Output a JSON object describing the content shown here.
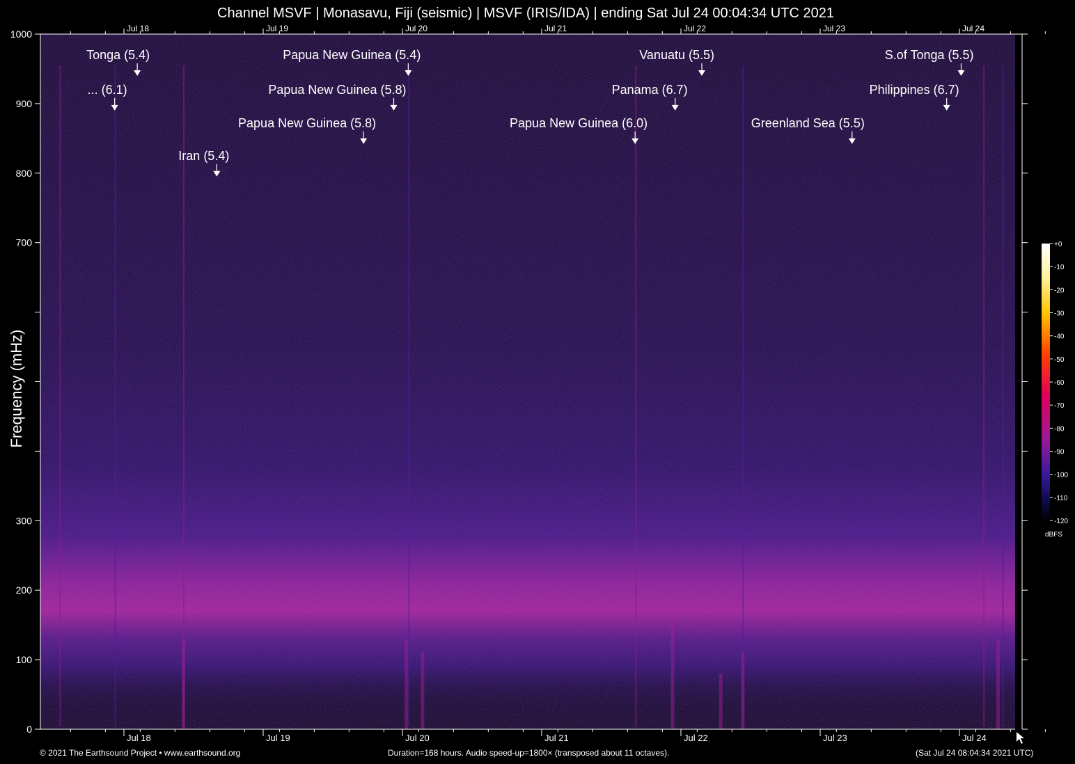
{
  "title": "Channel MSVF | Monasavu, Fiji (seismic) | MSVF (IRIS/IDA) | ending Sat Jul 24 00:04:34 UTC 2021",
  "footer": {
    "copyright": "© 2021 The Earthsound Project • www.earthsound.org",
    "info": "Duration=168 hours. Audio speed-up=1800× (transposed about 11 octaves).",
    "timestamp": "(Sat Jul 24 08:04:34 2021 UTC)"
  },
  "colors": {
    "background": "#000000",
    "low_band": "#b0208c",
    "noise": "#1c0c48"
  },
  "chart_data": {
    "type": "heatmap",
    "ylabel": "Frequency (mHz)",
    "ylim": [
      0,
      1000
    ],
    "y_ticks": [
      {
        "value": 0,
        "label": "0"
      },
      {
        "value": 100,
        "label": "100"
      },
      {
        "value": 200,
        "label": "200"
      },
      {
        "value": 300,
        "label": "300"
      },
      {
        "value": 400,
        "label": ""
      },
      {
        "value": 500,
        "label": ""
      },
      {
        "value": 600,
        "label": ""
      },
      {
        "value": 700,
        "label": "700"
      },
      {
        "value": 800,
        "label": "800"
      },
      {
        "value": 900,
        "label": "900"
      },
      {
        "value": 1000,
        "label": "1000"
      }
    ],
    "x_range_hours": [
      0,
      168
    ],
    "x_ticks": [
      {
        "hour": 14.4,
        "label": "Jul 18"
      },
      {
        "hour": 38.4,
        "label": "Jul 19"
      },
      {
        "hour": 62.4,
        "label": "Jul 20"
      },
      {
        "hour": 86.4,
        "label": "Jul 21"
      },
      {
        "hour": 110.4,
        "label": "Jul 22"
      },
      {
        "hour": 134.4,
        "label": "Jul 23"
      },
      {
        "hour": 158.4,
        "label": "Jul 24"
      }
    ],
    "minor_tick_step_hours": 6,
    "colorbar": {
      "unit": "dBFS",
      "range": [
        -120,
        0
      ],
      "ticks": [
        "+0",
        "-10",
        "-20",
        "-30",
        "-40",
        "-50",
        "-60",
        "-70",
        "-80",
        "-90",
        "-100",
        "-110",
        "-120"
      ]
    },
    "events": [
      {
        "label": "Tonga (5.4)",
        "hour": 16.7,
        "freq": 940
      },
      {
        "label": "... (6.1)",
        "hour": 12.8,
        "freq": 890
      },
      {
        "label": "Iran (5.4)",
        "hour": 30.4,
        "freq": 795
      },
      {
        "label": "Papua New Guinea (5.4)",
        "hour": 63.4,
        "freq": 940
      },
      {
        "label": "Papua New Guinea (5.8)",
        "hour": 60.9,
        "freq": 890
      },
      {
        "label": "Papua New Guinea (5.8)",
        "hour": 55.7,
        "freq": 842
      },
      {
        "label": "Vanuatu (5.5)",
        "hour": 114.0,
        "freq": 940
      },
      {
        "label": "Panama (6.7)",
        "hour": 109.4,
        "freq": 890
      },
      {
        "label": "Papua New Guinea (6.0)",
        "hour": 102.5,
        "freq": 842
      },
      {
        "label": "S.of Tonga (5.5)",
        "hour": 158.7,
        "freq": 940
      },
      {
        "label": "Philippines (6.7)",
        "hour": 156.2,
        "freq": 890
      },
      {
        "label": "Greenland Sea (5.5)",
        "hour": 139.9,
        "freq": 842
      }
    ]
  }
}
